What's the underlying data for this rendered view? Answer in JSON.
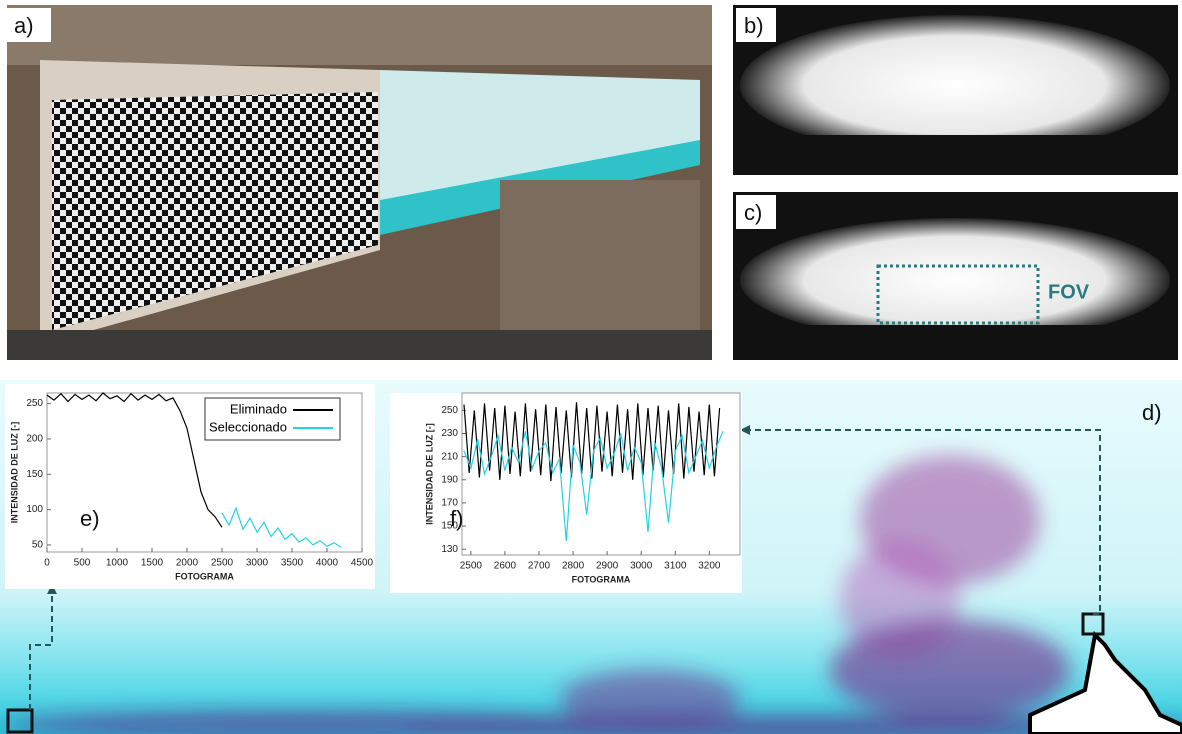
{
  "panels": {
    "a": "a)",
    "b": "b)",
    "c": "c)",
    "d": "d)",
    "fov": "FOV"
  },
  "chart_data": [
    {
      "type": "line",
      "panel_label": "e)",
      "xlabel": "FOTOGRAMA",
      "ylabel": "INTENSIDAD DE LUZ [-]",
      "xlim": [
        0,
        4500
      ],
      "ylim": [
        40,
        265
      ],
      "xticks": [
        0,
        500,
        1000,
        1500,
        2000,
        2500,
        3000,
        3500,
        4000,
        4500
      ],
      "yticks": [
        50,
        100,
        150,
        200,
        250
      ],
      "series": [
        {
          "name": "Eliminado",
          "color": "#000000",
          "x": [
            0,
            100,
            200,
            300,
            400,
            500,
            600,
            700,
            800,
            900,
            1000,
            1100,
            1200,
            1300,
            1400,
            1500,
            1600,
            1700,
            1800,
            1900,
            2000,
            2100,
            2200,
            2300,
            2400,
            2500
          ],
          "values": [
            262,
            255,
            264,
            253,
            263,
            256,
            262,
            254,
            265,
            257,
            261,
            253,
            264,
            255,
            262,
            256,
            263,
            254,
            258,
            240,
            215,
            170,
            125,
            100,
            90,
            75
          ]
        },
        {
          "name": "Seleccionado",
          "color": "#22d3e6",
          "x": [
            2500,
            2600,
            2700,
            2800,
            2900,
            3000,
            3100,
            3200,
            3300,
            3400,
            3500,
            3600,
            3700,
            3800,
            3900,
            4000,
            4100,
            4200
          ],
          "values": [
            95,
            78,
            102,
            72,
            88,
            68,
            82,
            62,
            74,
            58,
            66,
            54,
            60,
            50,
            56,
            48,
            53,
            47
          ]
        }
      ]
    },
    {
      "type": "line",
      "panel_label": "f)",
      "xlabel": "FOTOGRAMA",
      "ylabel": "INTENSIDAD DE LUZ [-]",
      "xlim": [
        2474,
        3290
      ],
      "ylim": [
        125,
        265
      ],
      "xticks": [
        2500,
        2600,
        2700,
        2800,
        2900,
        3000,
        3100,
        3200
      ],
      "yticks": [
        130,
        150,
        170,
        190,
        210,
        230,
        250
      ],
      "series": [
        {
          "name": "Eliminado",
          "color": "#000000",
          "x": [
            2480,
            2495,
            2510,
            2525,
            2540,
            2555,
            2570,
            2585,
            2600,
            2615,
            2630,
            2645,
            2660,
            2675,
            2690,
            2705,
            2720,
            2735,
            2750,
            2765,
            2780,
            2795,
            2810,
            2825,
            2840,
            2855,
            2870,
            2885,
            2900,
            2915,
            2930,
            2945,
            2960,
            2975,
            2990,
            3005,
            3020,
            3035,
            3050,
            3065,
            3080,
            3095,
            3110,
            3125,
            3140,
            3155,
            3170,
            3185,
            3200,
            3215,
            3230
          ],
          "values": [
            255,
            196,
            250,
            192,
            256,
            198,
            252,
            190,
            254,
            195,
            249,
            193,
            256,
            197,
            251,
            194,
            255,
            189,
            253,
            196,
            250,
            192,
            257,
            195,
            252,
            191,
            254,
            197,
            249,
            193,
            255,
            196,
            251,
            190,
            256,
            194,
            252,
            198,
            254,
            192,
            250,
            195,
            256,
            191,
            253,
            197,
            249,
            194,
            255,
            193,
            252
          ]
        },
        {
          "name": "Seleccionado",
          "color": "#22d3e6",
          "x": [
            2480,
            2500,
            2520,
            2540,
            2560,
            2580,
            2600,
            2620,
            2640,
            2660,
            2680,
            2700,
            2720,
            2740,
            2760,
            2780,
            2800,
            2820,
            2840,
            2860,
            2880,
            2900,
            2920,
            2940,
            2960,
            2980,
            3000,
            3020,
            3040,
            3060,
            3080,
            3100,
            3120,
            3140,
            3160,
            3180,
            3200,
            3220,
            3240
          ],
          "values": [
            215,
            200,
            225,
            195,
            210,
            228,
            198,
            218,
            205,
            232,
            200,
            215,
            222,
            196,
            208,
            137,
            220,
            205,
            160,
            215,
            226,
            200,
            212,
            230,
            198,
            218,
            205,
            145,
            222,
            200,
            153,
            215,
            228,
            196,
            210,
            224,
            200,
            218,
            232
          ]
        }
      ]
    }
  ]
}
